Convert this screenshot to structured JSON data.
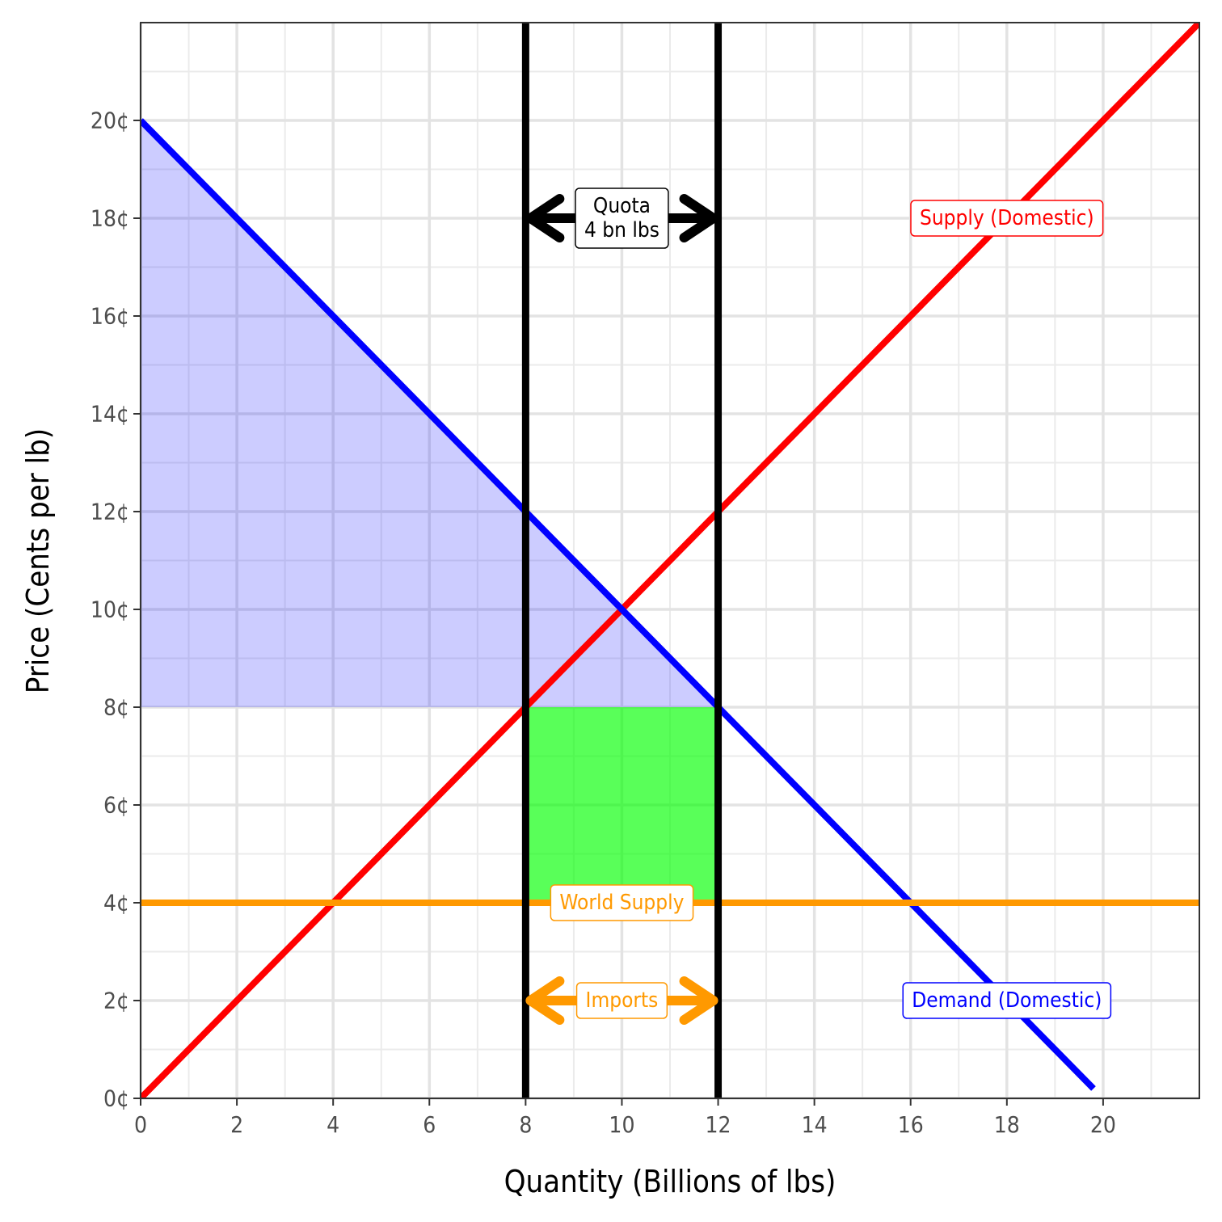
{
  "chart_data": {
    "type": "line",
    "xlabel": "Quantity (Billions of lbs)",
    "ylabel": "Price (Cents per lb)",
    "xlim": [
      0,
      22
    ],
    "ylim": [
      0,
      22
    ],
    "x_ticks": [
      0,
      2,
      4,
      6,
      8,
      10,
      12,
      14,
      16,
      18,
      20
    ],
    "x_tick_labels": [
      "0",
      "2",
      "4",
      "6",
      "8",
      "10",
      "12",
      "14",
      "16",
      "18",
      "20"
    ],
    "y_ticks": [
      0,
      2,
      4,
      6,
      8,
      10,
      12,
      14,
      16,
      18,
      20
    ],
    "y_tick_labels": [
      "0¢",
      "2¢",
      "4¢",
      "6¢",
      "8¢",
      "10¢",
      "12¢",
      "14¢",
      "16¢",
      "18¢",
      "20¢"
    ],
    "grid": true,
    "series": [
      {
        "name": "Supply (Domestic)",
        "color": "#ff0000",
        "x": [
          0,
          22
        ],
        "y": [
          0,
          22
        ]
      },
      {
        "name": "Demand (Domestic)",
        "color": "#0000ff",
        "x": [
          0,
          19.8
        ],
        "y": [
          20,
          0.2
        ]
      },
      {
        "name": "World Supply",
        "color": "#ff9900",
        "x": [
          0,
          22
        ],
        "y": [
          4,
          4
        ]
      }
    ],
    "quota_lines": {
      "color": "#000000",
      "x": [
        8,
        12
      ]
    },
    "shaded_regions": [
      {
        "role": "consumer-surplus",
        "color": "#0000ff",
        "opacity": 0.2,
        "polygon": [
          [
            0,
            20
          ],
          [
            12,
            8
          ],
          [
            0,
            8
          ]
        ]
      },
      {
        "role": "quota-rent",
        "color": "#00ff00",
        "opacity": 0.65,
        "polygon": [
          [
            8,
            4
          ],
          [
            12,
            4
          ],
          [
            12,
            8
          ],
          [
            8,
            8
          ]
        ]
      }
    ],
    "annotations": [
      {
        "lines": [
          "Quota",
          "4 bn lbs"
        ],
        "x": 10,
        "y": 18,
        "color": "#000000",
        "arrow": {
          "x0": 8,
          "x1": 12,
          "y": 18
        }
      },
      {
        "lines": [
          "Supply (Domestic)"
        ],
        "x": 18,
        "y": 18,
        "color": "#ff0000"
      },
      {
        "lines": [
          "World Supply"
        ],
        "x": 10,
        "y": 4,
        "color": "#ff9900"
      },
      {
        "lines": [
          "Imports"
        ],
        "x": 10,
        "y": 2,
        "color": "#ff9900",
        "arrow": {
          "x0": 8,
          "x1": 12,
          "y": 2
        }
      },
      {
        "lines": [
          "Demand (Domestic)"
        ],
        "x": 18,
        "y": 2,
        "color": "#0000ff"
      }
    ]
  }
}
